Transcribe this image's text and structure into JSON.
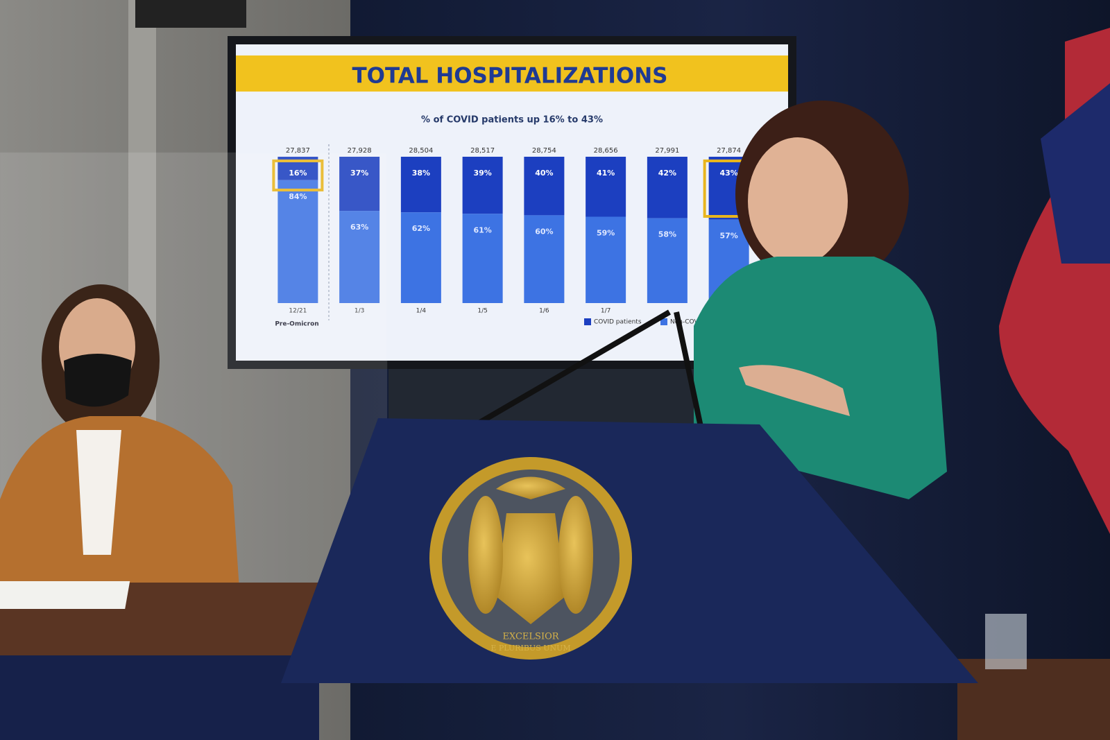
{
  "chart_data": {
    "type": "bar",
    "title": "TOTAL HOSPITALIZATIONS",
    "subtitle": "% of COVID patients up 16% to 43%",
    "categories": [
      "12/21",
      "1/3",
      "1/4",
      "1/5",
      "1/6",
      "1/7",
      null,
      null
    ],
    "group_label": "Pre-Omicron",
    "stacked": true,
    "series": [
      {
        "name": "COVID patients",
        "color": "#1c3fc0",
        "values": [
          16,
          37,
          38,
          39,
          40,
          41,
          42,
          43
        ],
        "value_labels": [
          "16%",
          "37%",
          "38%",
          "39%",
          "40%",
          "41%",
          "42%",
          "43%"
        ]
      },
      {
        "name": "Non-COVID patients",
        "color": "#3d73e3",
        "values": [
          84,
          63,
          62,
          61,
          60,
          59,
          58,
          57
        ],
        "value_labels": [
          "84%",
          "63%",
          "62%",
          "61%",
          "60%",
          "59%",
          "58%",
          "57%"
        ]
      }
    ],
    "totals": [
      {
        "value": 27837,
        "label": "27,837"
      },
      {
        "value": 27928,
        "label": "27,928"
      },
      {
        "value": 28504,
        "label": "28,504"
      },
      {
        "value": 28517,
        "label": "28,517"
      },
      {
        "value": 28754,
        "label": "28,754"
      },
      {
        "value": 28656,
        "label": "28,656"
      },
      {
        "value": 27991,
        "label": "27,991"
      },
      {
        "value": 27874,
        "label": "27,874"
      }
    ]
  },
  "seal": {
    "motto_top": "EXCELSIOR",
    "motto_bottom": "E PLURIBUS UNUM"
  }
}
